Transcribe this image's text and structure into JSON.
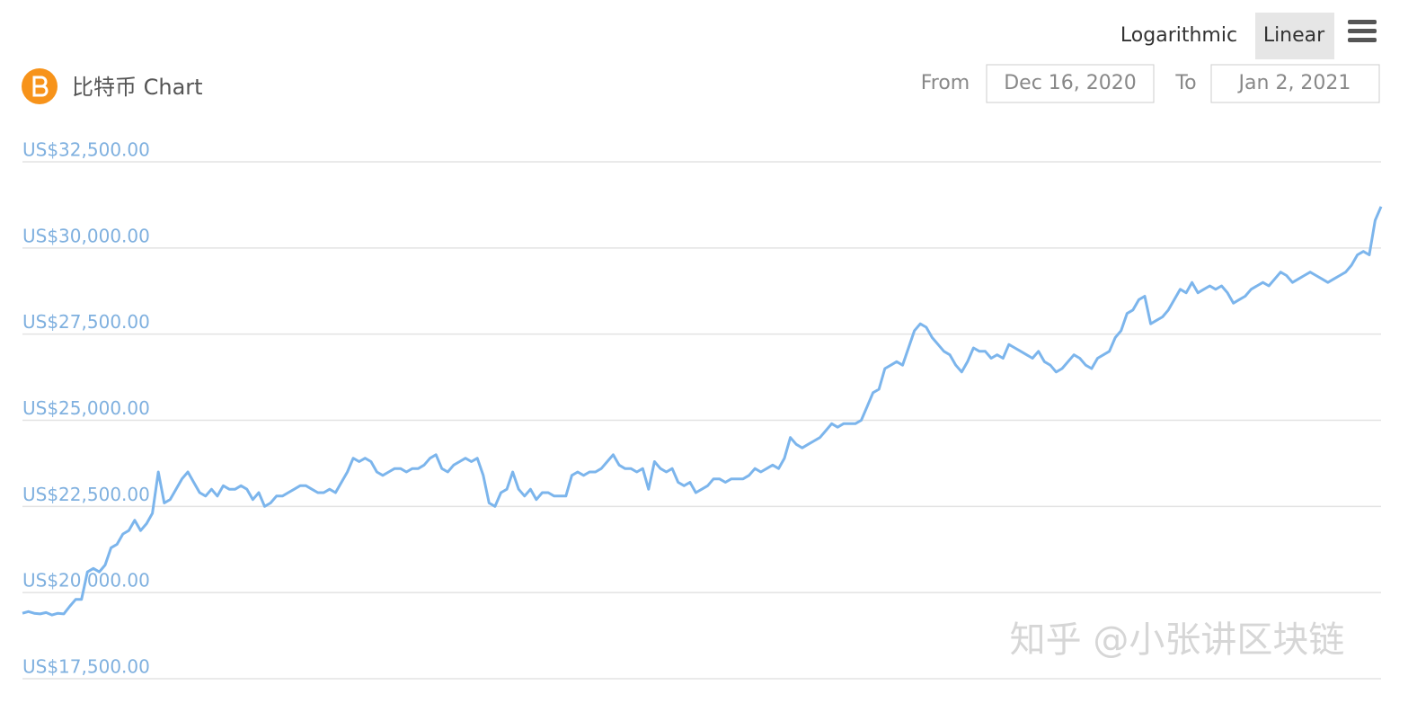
{
  "header": {
    "title": "比特币 Chart",
    "scale_options": [
      "Logarithmic",
      "Linear"
    ],
    "from_label": "From",
    "from_date": "Dec 16, 2020",
    "to_label": "To",
    "to_date": "Jan 2, 2021"
  },
  "watermark": "知乎 @小张讲区块链",
  "chart_data": {
    "type": "line",
    "color": "#7cb5ec",
    "grid": true,
    "ylim": [
      17500,
      32500
    ],
    "yticks": [
      {
        "value": 17500,
        "label": "US$17,500.00"
      },
      {
        "value": 20000,
        "label": "US$20,000.00"
      },
      {
        "value": 22500,
        "label": "US$22,500.00"
      },
      {
        "value": 25000,
        "label": "US$25,000.00"
      },
      {
        "value": 27500,
        "label": "US$27,500.00"
      },
      {
        "value": 30000,
        "label": "US$30,000.00"
      },
      {
        "value": 32500,
        "label": "US$32,500.00"
      }
    ],
    "values": [
      19400,
      19450,
      19400,
      19380,
      19420,
      19350,
      19400,
      19380,
      19600,
      19800,
      19800,
      20600,
      20700,
      20600,
      20800,
      21300,
      21400,
      21700,
      21800,
      22100,
      21800,
      22000,
      22300,
      23500,
      22600,
      22700,
      23000,
      23300,
      23500,
      23200,
      22900,
      22800,
      23000,
      22800,
      23100,
      23000,
      23000,
      23100,
      23000,
      22700,
      22900,
      22500,
      22600,
      22800,
      22800,
      22900,
      23000,
      23100,
      23100,
      23000,
      22900,
      22900,
      23000,
      22900,
      23200,
      23500,
      23900,
      23800,
      23900,
      23800,
      23500,
      23400,
      23500,
      23600,
      23600,
      23500,
      23600,
      23600,
      23700,
      23900,
      24000,
      23600,
      23500,
      23700,
      23800,
      23900,
      23800,
      23900,
      23400,
      22600,
      22500,
      22900,
      23000,
      23500,
      23000,
      22800,
      23000,
      22700,
      22900,
      22900,
      22800,
      22800,
      22800,
      23400,
      23500,
      23400,
      23500,
      23500,
      23600,
      23800,
      24000,
      23700,
      23600,
      23600,
      23500,
      23600,
      23000,
      23800,
      23600,
      23500,
      23600,
      23200,
      23100,
      23200,
      22900,
      23000,
      23100,
      23300,
      23300,
      23200,
      23300,
      23300,
      23300,
      23400,
      23600,
      23500,
      23600,
      23700,
      23600,
      23900,
      24500,
      24300,
      24200,
      24300,
      24400,
      24500,
      24700,
      24900,
      24800,
      24900,
      24900,
      24900,
      25000,
      25400,
      25800,
      25900,
      26500,
      26600,
      26700,
      26600,
      27100,
      27600,
      27800,
      27700,
      27400,
      27200,
      27000,
      26900,
      26600,
      26400,
      26700,
      27100,
      27000,
      27000,
      26800,
      26900,
      26800,
      27200,
      27100,
      27000,
      26900,
      26800,
      27000,
      26700,
      26600,
      26400,
      26500,
      26700,
      26900,
      26800,
      26600,
      26500,
      26800,
      26900,
      27000,
      27400,
      27600,
      28100,
      28200,
      28500,
      28600,
      27800,
      27900,
      28000,
      28200,
      28500,
      28800,
      28700,
      29000,
      28700,
      28800,
      28900,
      28800,
      28900,
      28700,
      28400,
      28500,
      28600,
      28800,
      28900,
      29000,
      28900,
      29100,
      29300,
      29200,
      29000,
      29100,
      29200,
      29300,
      29200,
      29100,
      29000,
      29100,
      29200,
      29300,
      29500,
      29800,
      29900,
      29800,
      30800,
      31200
    ]
  }
}
